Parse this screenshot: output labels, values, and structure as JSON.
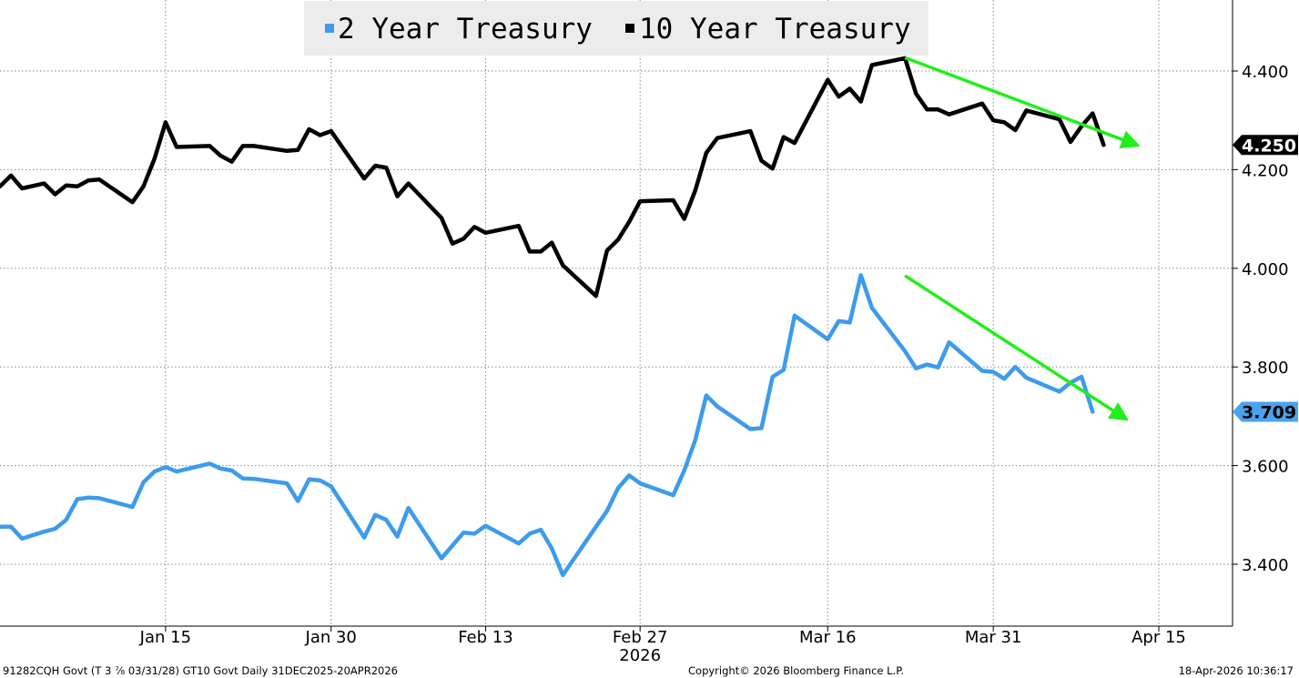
{
  "chart_data": {
    "type": "line",
    "title": "",
    "xlabel": "",
    "ylabel": "",
    "x_ticks": [
      {
        "label": "Jan 15",
        "date": "2026-01-15"
      },
      {
        "label": "Jan 30",
        "date": "2026-01-30"
      },
      {
        "label": "Feb 13",
        "date": "2026-02-13"
      },
      {
        "label": "Feb 27",
        "date": "2026-02-27"
      },
      {
        "label": "Mar 16",
        "date": "2026-03-16"
      },
      {
        "label": "Mar 31",
        "date": "2026-03-31"
      },
      {
        "label": "Apr 15",
        "date": "2026-04-15"
      }
    ],
    "x_year_label": "2026",
    "y_ticks": [
      "4.400",
      "4.200",
      "4.000",
      "3.800",
      "3.600",
      "3.400"
    ],
    "ylim": [
      3.28,
      4.535
    ],
    "xlim": [
      "2025-12-31",
      "2026-04-22"
    ],
    "grid": true,
    "legend_position": "top-center",
    "series": [
      {
        "name": "2 Year Treasury",
        "color": "#3d9bec",
        "last_value_label": "3.709",
        "points": [
          [
            "2025-12-31",
            3.476
          ],
          [
            "2026-01-01",
            3.476
          ],
          [
            "2026-01-02",
            3.452
          ],
          [
            "2026-01-04",
            3.466
          ],
          [
            "2026-01-05",
            3.472
          ],
          [
            "2026-01-06",
            3.49
          ],
          [
            "2026-01-07",
            3.532
          ],
          [
            "2026-01-08",
            3.535
          ],
          [
            "2026-01-09",
            3.534
          ],
          [
            "2026-01-12",
            3.516
          ],
          [
            "2026-01-13",
            3.566
          ],
          [
            "2026-01-14",
            3.588
          ],
          [
            "2026-01-15",
            3.597
          ],
          [
            "2026-01-16",
            3.588
          ],
          [
            "2026-01-19",
            3.604
          ],
          [
            "2026-01-20",
            3.594
          ],
          [
            "2026-01-21",
            3.59
          ],
          [
            "2026-01-22",
            3.574
          ],
          [
            "2026-01-23",
            3.573
          ],
          [
            "2026-01-26",
            3.564
          ],
          [
            "2026-01-27",
            3.528
          ],
          [
            "2026-01-28",
            3.572
          ],
          [
            "2026-01-29",
            3.57
          ],
          [
            "2026-01-30",
            3.558
          ],
          [
            "2026-02-02",
            3.454
          ],
          [
            "2026-02-03",
            3.5
          ],
          [
            "2026-02-04",
            3.49
          ],
          [
            "2026-02-05",
            3.456
          ],
          [
            "2026-02-06",
            3.514
          ],
          [
            "2026-02-09",
            3.412
          ],
          [
            "2026-02-10",
            3.438
          ],
          [
            "2026-02-11",
            3.464
          ],
          [
            "2026-02-12",
            3.462
          ],
          [
            "2026-02-13",
            3.478
          ],
          [
            "2026-02-16",
            3.442
          ],
          [
            "2026-02-17",
            3.462
          ],
          [
            "2026-02-18",
            3.47
          ],
          [
            "2026-02-19",
            3.432
          ],
          [
            "2026-02-20",
            3.378
          ],
          [
            "2026-02-23",
            3.476
          ],
          [
            "2026-02-24",
            3.508
          ],
          [
            "2026-02-25",
            3.554
          ],
          [
            "2026-02-26",
            3.58
          ],
          [
            "2026-02-27",
            3.564
          ],
          [
            "2026-03-02",
            3.54
          ],
          [
            "2026-03-03",
            3.59
          ],
          [
            "2026-03-04",
            3.652
          ],
          [
            "2026-03-05",
            3.742
          ],
          [
            "2026-03-06",
            3.72
          ],
          [
            "2026-03-09",
            3.674
          ],
          [
            "2026-03-10",
            3.676
          ],
          [
            "2026-03-11",
            3.78
          ],
          [
            "2026-03-12",
            3.794
          ],
          [
            "2026-03-13",
            3.904
          ],
          [
            "2026-03-16",
            3.856
          ],
          [
            "2026-03-17",
            3.893
          ],
          [
            "2026-03-18",
            3.89
          ],
          [
            "2026-03-19",
            3.986
          ],
          [
            "2026-03-20",
            3.92
          ],
          [
            "2026-03-23",
            3.832
          ],
          [
            "2026-03-24",
            3.797
          ],
          [
            "2026-03-25",
            3.805
          ],
          [
            "2026-03-26",
            3.799
          ],
          [
            "2026-03-27",
            3.85
          ],
          [
            "2026-03-30",
            3.792
          ],
          [
            "2026-03-31",
            3.79
          ],
          [
            "2026-04-01",
            3.776
          ],
          [
            "2026-04-02",
            3.8
          ],
          [
            "2026-04-03",
            3.778
          ],
          [
            "2026-04-06",
            3.75
          ],
          [
            "2026-04-07",
            3.768
          ],
          [
            "2026-04-08",
            3.78
          ],
          [
            "2026-04-09",
            3.709
          ]
        ]
      },
      {
        "name": "10 Year Treasury",
        "color": "#000000",
        "last_value_label": "4.250",
        "points": [
          [
            "2025-12-31",
            4.166
          ],
          [
            "2026-01-01",
            4.188
          ],
          [
            "2026-01-02",
            4.162
          ],
          [
            "2026-01-04",
            4.172
          ],
          [
            "2026-01-05",
            4.15
          ],
          [
            "2026-01-06",
            4.168
          ],
          [
            "2026-01-07",
            4.166
          ],
          [
            "2026-01-08",
            4.178
          ],
          [
            "2026-01-09",
            4.18
          ],
          [
            "2026-01-12",
            4.134
          ],
          [
            "2026-01-13",
            4.166
          ],
          [
            "2026-01-14",
            4.222
          ],
          [
            "2026-01-15",
            4.296
          ],
          [
            "2026-01-16",
            4.246
          ],
          [
            "2026-01-19",
            4.248
          ],
          [
            "2026-01-20",
            4.228
          ],
          [
            "2026-01-21",
            4.216
          ],
          [
            "2026-01-22",
            4.248
          ],
          [
            "2026-01-23",
            4.248
          ],
          [
            "2026-01-26",
            4.238
          ],
          [
            "2026-01-27",
            4.24
          ],
          [
            "2026-01-28",
            4.282
          ],
          [
            "2026-01-29",
            4.27
          ],
          [
            "2026-01-30",
            4.278
          ],
          [
            "2026-02-02",
            4.182
          ],
          [
            "2026-02-03",
            4.208
          ],
          [
            "2026-02-04",
            4.204
          ],
          [
            "2026-02-05",
            4.146
          ],
          [
            "2026-02-06",
            4.172
          ],
          [
            "2026-02-09",
            4.102
          ],
          [
            "2026-02-10",
            4.05
          ],
          [
            "2026-02-11",
            4.06
          ],
          [
            "2026-02-12",
            4.084
          ],
          [
            "2026-02-13",
            4.072
          ],
          [
            "2026-02-16",
            4.086
          ],
          [
            "2026-02-17",
            4.034
          ],
          [
            "2026-02-18",
            4.034
          ],
          [
            "2026-02-19",
            4.052
          ],
          [
            "2026-02-20",
            4.006
          ],
          [
            "2026-02-23",
            3.944
          ],
          [
            "2026-02-24",
            4.036
          ],
          [
            "2026-02-25",
            4.058
          ],
          [
            "2026-02-26",
            4.094
          ],
          [
            "2026-02-27",
            4.136
          ],
          [
            "2026-03-02",
            4.138
          ],
          [
            "2026-03-03",
            4.1
          ],
          [
            "2026-03-04",
            4.158
          ],
          [
            "2026-03-05",
            4.234
          ],
          [
            "2026-03-06",
            4.264
          ],
          [
            "2026-03-09",
            4.278
          ],
          [
            "2026-03-10",
            4.218
          ],
          [
            "2026-03-11",
            4.202
          ],
          [
            "2026-03-12",
            4.266
          ],
          [
            "2026-03-13",
            4.254
          ],
          [
            "2026-03-16",
            4.382
          ],
          [
            "2026-03-17",
            4.348
          ],
          [
            "2026-03-18",
            4.364
          ],
          [
            "2026-03-19",
            4.338
          ],
          [
            "2026-03-20",
            4.412
          ],
          [
            "2026-03-23",
            4.426
          ],
          [
            "2026-03-24",
            4.354
          ],
          [
            "2026-03-25",
            4.322
          ],
          [
            "2026-03-26",
            4.322
          ],
          [
            "2026-03-27",
            4.312
          ],
          [
            "2026-03-30",
            4.334
          ],
          [
            "2026-03-31",
            4.3
          ],
          [
            "2026-04-01",
            4.296
          ],
          [
            "2026-04-02",
            4.28
          ],
          [
            "2026-04-03",
            4.32
          ],
          [
            "2026-04-06",
            4.302
          ],
          [
            "2026-04-07",
            4.256
          ],
          [
            "2026-04-08",
            4.288
          ],
          [
            "2026-04-09",
            4.314
          ],
          [
            "2026-04-10",
            4.25
          ]
        ]
      }
    ],
    "annotations": [
      {
        "type": "arrow",
        "color": "#22ee1a",
        "from": [
          "2026-03-23",
          4.427
        ],
        "to": [
          "2026-04-13",
          4.25
        ]
      },
      {
        "type": "arrow",
        "color": "#22ee1a",
        "from": [
          "2026-03-23",
          3.985
        ],
        "to": [
          "2026-04-12",
          3.695
        ]
      }
    ]
  },
  "footer": {
    "left": "91282CQH Govt (T 3 ⅞ 03/31/28) GT10  Govt Daily 31DEC2025-20APR2026",
    "center": "Copyright© 2026 Bloomberg Finance L.P.",
    "right": "18-Apr-2026 10:36:17"
  }
}
